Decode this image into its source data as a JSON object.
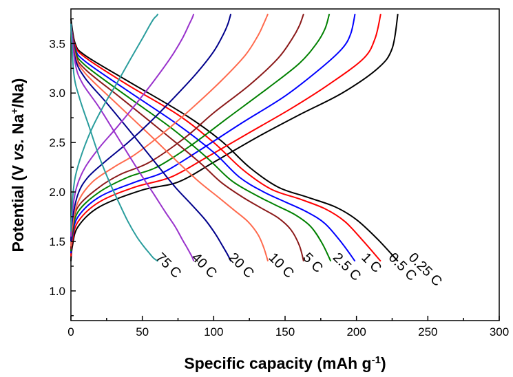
{
  "chart_data": {
    "type": "line",
    "title": "",
    "xlabel": "Specific capacity (mAh g-1)",
    "ylabel": "Potential (V vs. Na+/Na)",
    "xlim": [
      0,
      300
    ],
    "ylim": [
      0.7,
      3.85
    ],
    "xticks": [
      "0",
      "50",
      "100",
      "150",
      "200",
      "250",
      "300"
    ],
    "yticks": [
      "1.0",
      "1.5",
      "2.0",
      "2.5",
      "3.0",
      "3.5"
    ],
    "grid": false,
    "legend": "none",
    "series": [
      {
        "name": "0.25 C",
        "color": "#000000",
        "discharge": [
          [
            0,
            3.75
          ],
          [
            3,
            3.5
          ],
          [
            10,
            3.38
          ],
          [
            40,
            3.12
          ],
          [
            80,
            2.78
          ],
          [
            105,
            2.52
          ],
          [
            125,
            2.25
          ],
          [
            145,
            2.05
          ],
          [
            165,
            1.95
          ],
          [
            185,
            1.85
          ],
          [
            200,
            1.72
          ],
          [
            215,
            1.52
          ],
          [
            229,
            1.3
          ]
        ],
        "charge": [
          [
            0,
            1.3
          ],
          [
            1,
            1.45
          ],
          [
            5,
            1.65
          ],
          [
            20,
            1.85
          ],
          [
            50,
            2.02
          ],
          [
            75,
            2.1
          ],
          [
            100,
            2.3
          ],
          [
            130,
            2.55
          ],
          [
            160,
            2.78
          ],
          [
            190,
            3.0
          ],
          [
            215,
            3.25
          ],
          [
            225,
            3.45
          ],
          [
            229,
            3.8
          ]
        ]
      },
      {
        "name": "0.5 C",
        "color": "#ff0000",
        "discharge": [
          [
            0,
            3.7
          ],
          [
            3,
            3.48
          ],
          [
            10,
            3.36
          ],
          [
            40,
            3.08
          ],
          [
            75,
            2.78
          ],
          [
            100,
            2.5
          ],
          [
            120,
            2.23
          ],
          [
            140,
            2.03
          ],
          [
            160,
            1.93
          ],
          [
            178,
            1.83
          ],
          [
            192,
            1.7
          ],
          [
            205,
            1.5
          ],
          [
            217,
            1.3
          ]
        ],
        "charge": [
          [
            0,
            1.35
          ],
          [
            1,
            1.5
          ],
          [
            5,
            1.7
          ],
          [
            20,
            1.9
          ],
          [
            45,
            2.05
          ],
          [
            70,
            2.15
          ],
          [
            95,
            2.35
          ],
          [
            125,
            2.6
          ],
          [
            155,
            2.85
          ],
          [
            182,
            3.1
          ],
          [
            205,
            3.35
          ],
          [
            213,
            3.55
          ],
          [
            217,
            3.8
          ]
        ]
      },
      {
        "name": "1 C",
        "color": "#0000ff",
        "discharge": [
          [
            0,
            3.7
          ],
          [
            3,
            3.45
          ],
          [
            10,
            3.32
          ],
          [
            40,
            3.02
          ],
          [
            75,
            2.68
          ],
          [
            100,
            2.4
          ],
          [
            118,
            2.15
          ],
          [
            135,
            2.0
          ],
          [
            150,
            1.9
          ],
          [
            165,
            1.8
          ],
          [
            178,
            1.68
          ],
          [
            190,
            1.48
          ],
          [
            199,
            1.3
          ]
        ],
        "charge": [
          [
            0,
            1.38
          ],
          [
            1,
            1.55
          ],
          [
            5,
            1.75
          ],
          [
            20,
            1.95
          ],
          [
            45,
            2.1
          ],
          [
            65,
            2.2
          ],
          [
            90,
            2.42
          ],
          [
            120,
            2.7
          ],
          [
            150,
            2.97
          ],
          [
            175,
            3.25
          ],
          [
            190,
            3.45
          ],
          [
            196,
            3.6
          ],
          [
            199,
            3.8
          ]
        ]
      },
      {
        "name": "2.5 C",
        "color": "#008000",
        "discharge": [
          [
            0,
            3.7
          ],
          [
            3,
            3.43
          ],
          [
            10,
            3.28
          ],
          [
            40,
            2.96
          ],
          [
            70,
            2.65
          ],
          [
            95,
            2.35
          ],
          [
            112,
            2.12
          ],
          [
            128,
            1.98
          ],
          [
            143,
            1.87
          ],
          [
            157,
            1.77
          ],
          [
            168,
            1.65
          ],
          [
            176,
            1.48
          ],
          [
            182,
            1.3
          ]
        ],
        "charge": [
          [
            0,
            1.4
          ],
          [
            1,
            1.58
          ],
          [
            5,
            1.8
          ],
          [
            20,
            2.0
          ],
          [
            40,
            2.15
          ],
          [
            60,
            2.25
          ],
          [
            85,
            2.48
          ],
          [
            110,
            2.75
          ],
          [
            138,
            3.05
          ],
          [
            160,
            3.3
          ],
          [
            172,
            3.5
          ],
          [
            178,
            3.65
          ],
          [
            181,
            3.8
          ]
        ]
      },
      {
        "name": "5 C",
        "color": "#8b1a1a",
        "discharge": [
          [
            0,
            3.7
          ],
          [
            3,
            3.4
          ],
          [
            10,
            3.24
          ],
          [
            35,
            2.95
          ],
          [
            65,
            2.6
          ],
          [
            90,
            2.3
          ],
          [
            105,
            2.1
          ],
          [
            120,
            1.95
          ],
          [
            133,
            1.84
          ],
          [
            145,
            1.74
          ],
          [
            154,
            1.62
          ],
          [
            160,
            1.46
          ],
          [
            163,
            1.3
          ]
        ],
        "charge": [
          [
            0,
            1.42
          ],
          [
            1,
            1.62
          ],
          [
            5,
            1.85
          ],
          [
            20,
            2.05
          ],
          [
            35,
            2.18
          ],
          [
            55,
            2.3
          ],
          [
            80,
            2.55
          ],
          [
            100,
            2.8
          ],
          [
            125,
            3.08
          ],
          [
            145,
            3.35
          ],
          [
            155,
            3.55
          ],
          [
            160,
            3.68
          ],
          [
            163,
            3.8
          ]
        ]
      },
      {
        "name": "10 C",
        "color": "#ff6a4d",
        "discharge": [
          [
            0,
            3.7
          ],
          [
            3,
            3.38
          ],
          [
            10,
            3.2
          ],
          [
            30,
            2.92
          ],
          [
            55,
            2.58
          ],
          [
            75,
            2.3
          ],
          [
            90,
            2.1
          ],
          [
            103,
            1.95
          ],
          [
            114,
            1.82
          ],
          [
            124,
            1.7
          ],
          [
            131,
            1.57
          ],
          [
            135,
            1.44
          ],
          [
            138,
            1.3
          ]
        ],
        "charge": [
          [
            0,
            1.45
          ],
          [
            1,
            1.65
          ],
          [
            5,
            1.9
          ],
          [
            15,
            2.1
          ],
          [
            30,
            2.25
          ],
          [
            45,
            2.38
          ],
          [
            65,
            2.6
          ],
          [
            85,
            2.85
          ],
          [
            105,
            3.12
          ],
          [
            122,
            3.38
          ],
          [
            131,
            3.58
          ],
          [
            135,
            3.7
          ],
          [
            138,
            3.8
          ]
        ]
      },
      {
        "name": "20 C",
        "color": "#00008b",
        "discharge": [
          [
            0,
            3.7
          ],
          [
            3,
            3.35
          ],
          [
            10,
            3.15
          ],
          [
            25,
            2.9
          ],
          [
            45,
            2.55
          ],
          [
            60,
            2.28
          ],
          [
            73,
            2.05
          ],
          [
            84,
            1.88
          ],
          [
            94,
            1.72
          ],
          [
            101,
            1.58
          ],
          [
            106,
            1.46
          ],
          [
            110,
            1.36
          ],
          [
            112,
            1.3
          ]
        ],
        "charge": [
          [
            0,
            1.5
          ],
          [
            1,
            1.72
          ],
          [
            5,
            1.98
          ],
          [
            12,
            2.15
          ],
          [
            25,
            2.32
          ],
          [
            40,
            2.5
          ],
          [
            55,
            2.7
          ],
          [
            72,
            2.95
          ],
          [
            88,
            3.2
          ],
          [
            100,
            3.42
          ],
          [
            107,
            3.6
          ],
          [
            110,
            3.7
          ],
          [
            112,
            3.8
          ]
        ]
      },
      {
        "name": "40 C",
        "color": "#9932cc",
        "discharge": [
          [
            0,
            3.7
          ],
          [
            3,
            3.3
          ],
          [
            8,
            3.1
          ],
          [
            20,
            2.85
          ],
          [
            35,
            2.5
          ],
          [
            48,
            2.2
          ],
          [
            58,
            1.98
          ],
          [
            66,
            1.8
          ],
          [
            73,
            1.65
          ],
          [
            78,
            1.52
          ],
          [
            82,
            1.42
          ],
          [
            85,
            1.34
          ],
          [
            86,
            1.3
          ]
        ],
        "charge": [
          [
            0,
            1.55
          ],
          [
            1,
            1.8
          ],
          [
            4,
            2.05
          ],
          [
            10,
            2.25
          ],
          [
            20,
            2.45
          ],
          [
            32,
            2.65
          ],
          [
            45,
            2.88
          ],
          [
            58,
            3.12
          ],
          [
            70,
            3.36
          ],
          [
            78,
            3.55
          ],
          [
            83,
            3.7
          ],
          [
            85,
            3.76
          ],
          [
            86,
            3.8
          ]
        ]
      },
      {
        "name": "75 C",
        "color": "#2a9d9d",
        "discharge": [
          [
            0,
            3.7
          ],
          [
            2,
            3.2
          ],
          [
            6,
            2.95
          ],
          [
            13,
            2.65
          ],
          [
            20,
            2.35
          ],
          [
            27,
            2.1
          ],
          [
            34,
            1.88
          ],
          [
            40,
            1.7
          ],
          [
            46,
            1.55
          ],
          [
            51,
            1.45
          ],
          [
            55,
            1.38
          ],
          [
            58,
            1.33
          ],
          [
            61,
            1.3
          ]
        ],
        "charge": [
          [
            0,
            1.6
          ],
          [
            1,
            1.9
          ],
          [
            3,
            2.15
          ],
          [
            8,
            2.4
          ],
          [
            15,
            2.65
          ],
          [
            24,
            2.9
          ],
          [
            33,
            3.12
          ],
          [
            42,
            3.35
          ],
          [
            50,
            3.55
          ],
          [
            55,
            3.68
          ],
          [
            58,
            3.75
          ],
          [
            60,
            3.78
          ],
          [
            61,
            3.8
          ]
        ]
      }
    ],
    "rate_labels": [
      {
        "text": "0.25 C",
        "x": 236,
        "y": 1.33
      },
      {
        "text": "0.5 C",
        "x": 222,
        "y": 1.33
      },
      {
        "text": "1 C",
        "x": 203,
        "y": 1.33
      },
      {
        "text": "2.5 C",
        "x": 183,
        "y": 1.33
      },
      {
        "text": "5 C",
        "x": 162,
        "y": 1.33
      },
      {
        "text": "10 C",
        "x": 138,
        "y": 1.33
      },
      {
        "text": "20 C",
        "x": 110,
        "y": 1.33
      },
      {
        "text": "40 C",
        "x": 84,
        "y": 1.33
      },
      {
        "text": "75 C",
        "x": 59,
        "y": 1.33
      }
    ]
  }
}
